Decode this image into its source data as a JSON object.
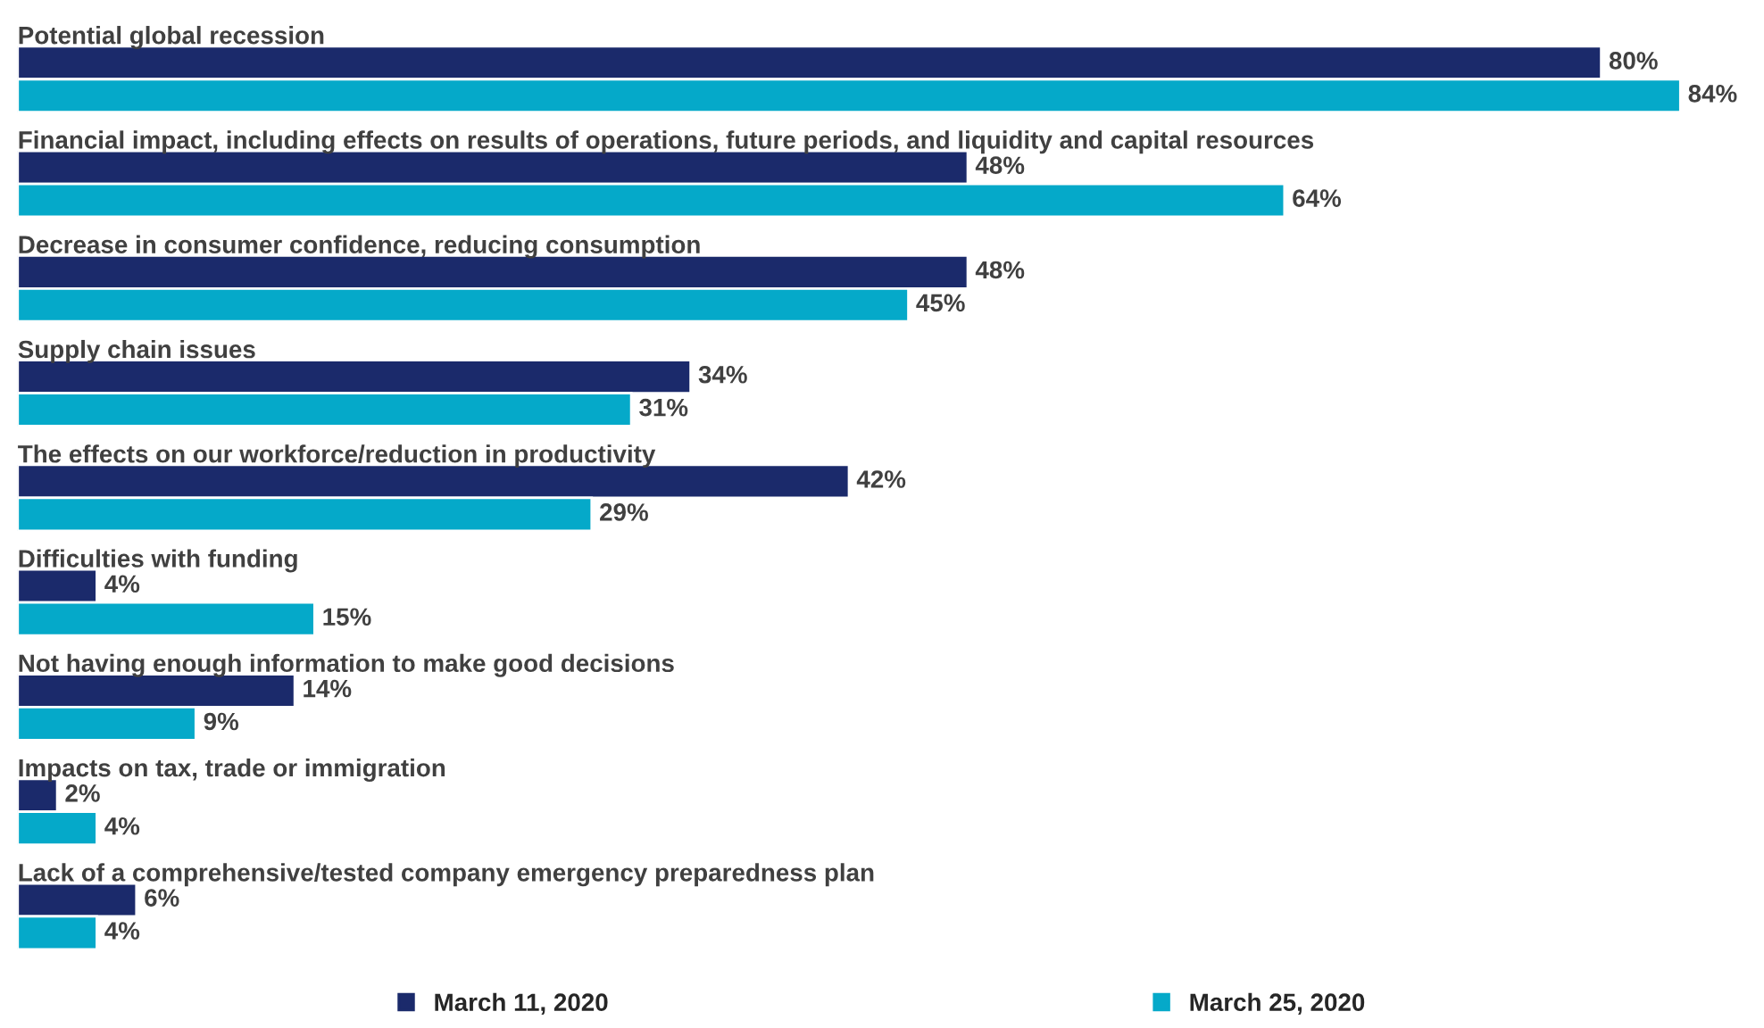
{
  "chart_data": {
    "type": "bar",
    "orientation": "horizontal",
    "legend": "bottom",
    "categories": [
      "Potential global recession",
      "Financial impact, including effects on results of operations, future periods, and liquidity and capital resources",
      "Decrease in consumer confidence, reducing consumption",
      "Supply chain issues",
      "The effects on our workforce/reduction in productivity",
      "Difficulties with funding",
      "Not having enough information to make good decisions",
      "Impacts on tax, trade or immigration",
      "Lack of a comprehensive/tested company emergency preparedness plan"
    ],
    "series": [
      {
        "name": "March 11, 2020",
        "color": "#1b2a6b",
        "values": [
          80,
          48,
          48,
          34,
          42,
          4,
          14,
          2,
          6
        ],
        "value_labels": [
          "80%",
          "48%",
          "48%",
          "34%",
          "42%",
          "4%",
          "14%",
          "2%",
          "6%"
        ]
      },
      {
        "name": "March 25, 2020",
        "color": "#05a9c9",
        "values": [
          84,
          64,
          45,
          31,
          29,
          15,
          9,
          4,
          4
        ],
        "value_labels": [
          "84%",
          "64%",
          "45%",
          "31%",
          "29%",
          "15%",
          "9%",
          "4%",
          "4%"
        ]
      }
    ]
  }
}
